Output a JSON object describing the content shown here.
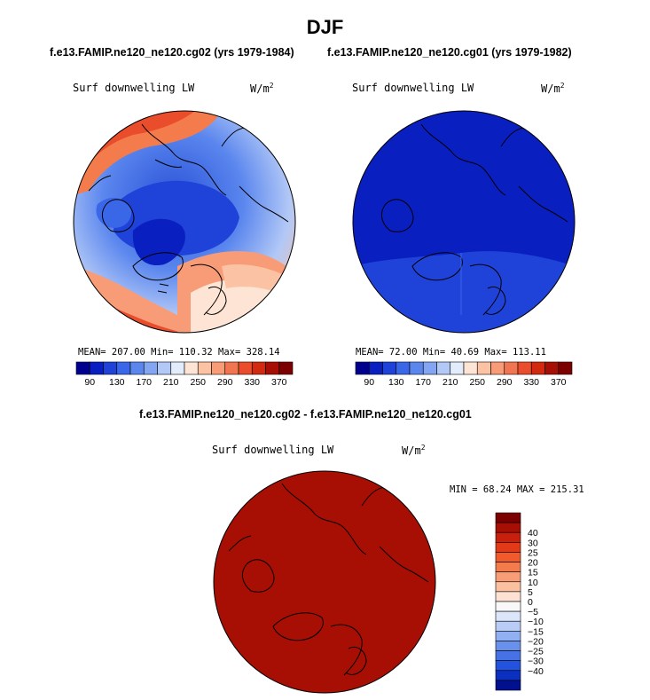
{
  "title": "DJF",
  "panels": [
    {
      "header": "f.e13.FAMIP.ne120_ne120.cg02 (yrs 1979-1984)",
      "variable": "Surf downwelling LW",
      "units": "W/m",
      "units_sup": "2",
      "stats": "MEAN= 207.00  Min= 110.32  Max= 328.14"
    },
    {
      "header": "f.e13.FAMIP.ne120_ne120.cg01 (yrs 1979-1982)",
      "variable": "Surf downwelling LW",
      "units": "W/m",
      "units_sup": "2",
      "stats": "MEAN=  72.00  Min=  40.69  Max= 113.11"
    },
    {
      "header": "f.e13.FAMIP.ne120_ne120.cg02 - f.e13.FAMIP.ne120_ne120.cg01",
      "variable": "Surf downwelling LW",
      "units": "W/m",
      "units_sup": "2",
      "stats": "MIN =  68.24 MAX = 215.31"
    }
  ],
  "colorbar_abs": {
    "colors": [
      "#00008f",
      "#0a1fbf",
      "#1f43d9",
      "#3a66e8",
      "#5a86ee",
      "#84a6f2",
      "#b2c8f6",
      "#e2ecfb",
      "#fde4d4",
      "#fbc2a4",
      "#f89c78",
      "#f27551",
      "#ea4d2c",
      "#d22a0f",
      "#a80f04",
      "#7d0000"
    ],
    "labels": [
      "90",
      "130",
      "170",
      "210",
      "250",
      "290",
      "330",
      "370"
    ]
  },
  "colorbar_diff": {
    "colors": [
      "#7d0000",
      "#a80f04",
      "#c8200c",
      "#e23a18",
      "#f25a2c",
      "#f47c4c",
      "#f89d76",
      "#fbc0a0",
      "#fde2d3",
      "#f8f8f8",
      "#dbe6fb",
      "#b8ccf6",
      "#90b0f2",
      "#6a90ee",
      "#4672e6",
      "#2252de",
      "#0b30c0",
      "#00108f"
    ],
    "labels": [
      "40",
      "30",
      "25",
      "20",
      "15",
      "10",
      "5",
      "0",
      "−5",
      "−10",
      "−15",
      "−20",
      "−25",
      "−30",
      "−40"
    ]
  },
  "icons": [
    "coastline-map",
    "colorbar"
  ]
}
